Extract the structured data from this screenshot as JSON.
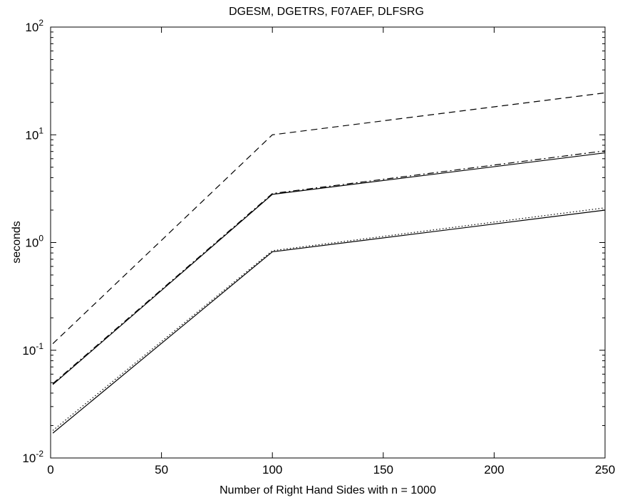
{
  "chart_data": {
    "type": "line",
    "title": "DGESM, DGETRS, F07AEF, DLFSRG",
    "xlabel": "Number of Right Hand Sides with n = 1000",
    "ylabel": "seconds",
    "xlim": [
      0,
      250
    ],
    "ylim": [
      0.01,
      100
    ],
    "yscale": "log",
    "grid": false,
    "x_ticks": [
      "0",
      "50",
      "100",
      "150",
      "200",
      "250"
    ],
    "y_ticks": [
      {
        "base": "10",
        "exp": "-2"
      },
      {
        "base": "10",
        "exp": "-1"
      },
      {
        "base": "10",
        "exp": "0"
      },
      {
        "base": "10",
        "exp": "1"
      },
      {
        "base": "10",
        "exp": "2"
      }
    ],
    "series": [
      {
        "style": "dashed",
        "x": [
          1,
          100,
          250
        ],
        "y": [
          0.115,
          10.0,
          24.5
        ]
      },
      {
        "style": "dashdot",
        "x": [
          1,
          100,
          250
        ],
        "y": [
          0.049,
          2.85,
          7.1
        ]
      },
      {
        "style": "solid",
        "x": [
          1,
          100,
          250
        ],
        "y": [
          0.048,
          2.8,
          6.8
        ]
      },
      {
        "style": "dotted",
        "x": [
          1,
          100,
          250
        ],
        "y": [
          0.018,
          0.84,
          2.1
        ]
      },
      {
        "style": "solid",
        "x": [
          1,
          100,
          250
        ],
        "y": [
          0.017,
          0.82,
          2.0
        ]
      }
    ]
  }
}
